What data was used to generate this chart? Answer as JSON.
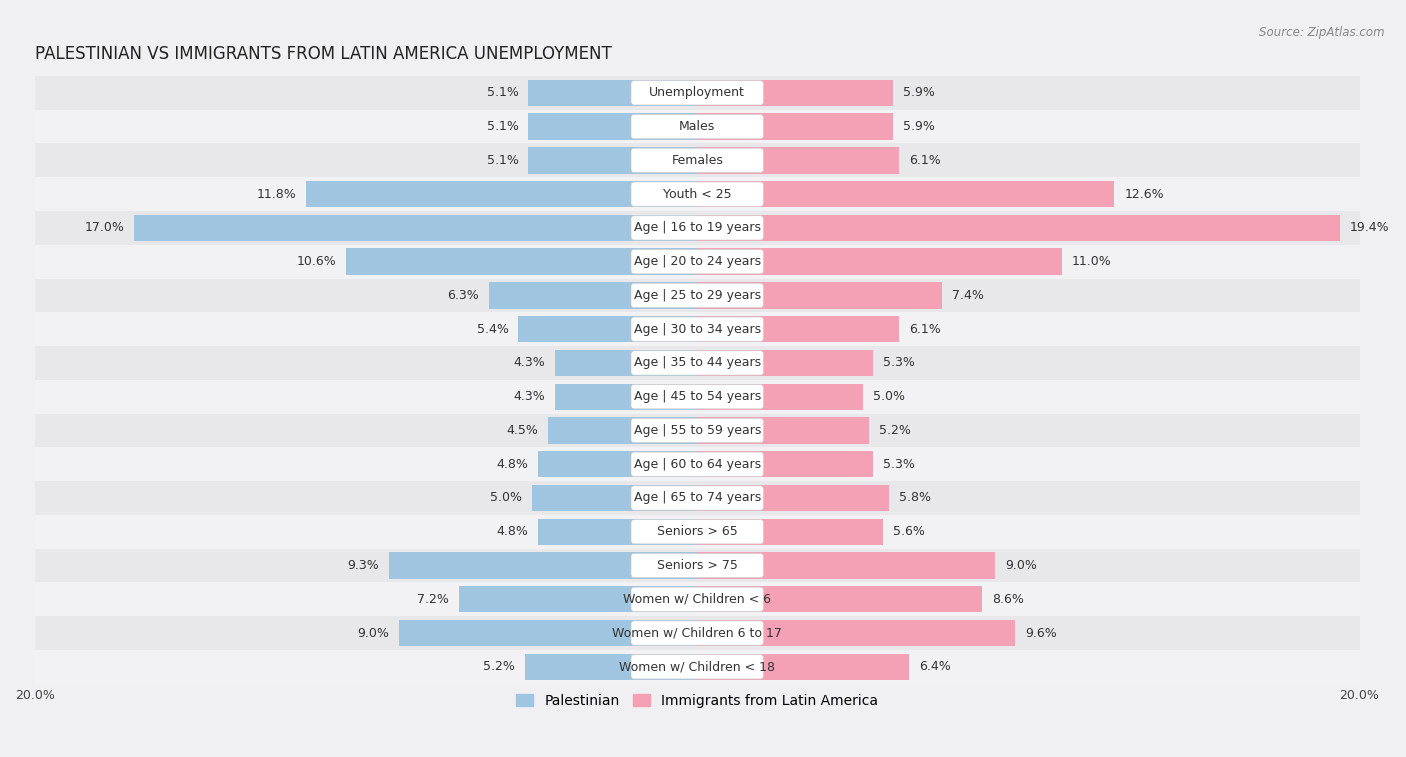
{
  "title": "PALESTINIAN VS IMMIGRANTS FROM LATIN AMERICA UNEMPLOYMENT",
  "source": "Source: ZipAtlas.com",
  "categories": [
    "Unemployment",
    "Males",
    "Females",
    "Youth < 25",
    "Age | 16 to 19 years",
    "Age | 20 to 24 years",
    "Age | 25 to 29 years",
    "Age | 30 to 34 years",
    "Age | 35 to 44 years",
    "Age | 45 to 54 years",
    "Age | 55 to 59 years",
    "Age | 60 to 64 years",
    "Age | 65 to 74 years",
    "Seniors > 65",
    "Seniors > 75",
    "Women w/ Children < 6",
    "Women w/ Children 6 to 17",
    "Women w/ Children < 18"
  ],
  "palestinian": [
    5.1,
    5.1,
    5.1,
    11.8,
    17.0,
    10.6,
    6.3,
    5.4,
    4.3,
    4.3,
    4.5,
    4.8,
    5.0,
    4.8,
    9.3,
    7.2,
    9.0,
    5.2
  ],
  "immigrants": [
    5.9,
    5.9,
    6.1,
    12.6,
    19.4,
    11.0,
    7.4,
    6.1,
    5.3,
    5.0,
    5.2,
    5.3,
    5.8,
    5.6,
    9.0,
    8.6,
    9.6,
    6.4
  ],
  "palestinian_color": "#9fc5e0",
  "immigrant_color": "#f4a0b5",
  "row_color_odd": "#e8e8ea",
  "row_color_even": "#f2f2f4",
  "background_color": "#f0f0f2",
  "axis_max": 20.0,
  "label_fontsize": 9.0,
  "value_fontsize": 9.0,
  "title_fontsize": 12,
  "source_fontsize": 8.5,
  "legend_label_palestinian": "Palestinian",
  "legend_label_immigrant": "Immigrants from Latin America",
  "bar_height": 0.78
}
